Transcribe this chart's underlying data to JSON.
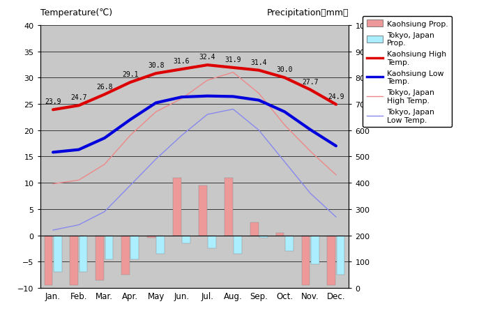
{
  "months": [
    "Jan.",
    "Feb.",
    "Mar.",
    "Apr.",
    "May",
    "Jun.",
    "Jul.",
    "Aug.",
    "Sep.",
    "Oct.",
    "Nov.",
    "Dec."
  ],
  "kaohsiung_high": [
    23.9,
    24.7,
    26.8,
    29.1,
    30.8,
    31.6,
    32.4,
    31.9,
    31.4,
    30.0,
    27.7,
    24.9
  ],
  "kaohsiung_low": [
    15.8,
    16.3,
    18.5,
    22.0,
    25.2,
    26.3,
    26.5,
    26.4,
    25.7,
    23.5,
    20.1,
    17.0
  ],
  "tokyo_high": [
    9.8,
    10.5,
    13.5,
    19.0,
    23.5,
    26.0,
    29.5,
    31.0,
    27.0,
    21.0,
    16.0,
    11.5
  ],
  "tokyo_low": [
    1.0,
    2.0,
    4.5,
    9.5,
    14.5,
    19.0,
    23.0,
    24.0,
    20.0,
    14.0,
    8.0,
    3.5
  ],
  "kaohsiung_precip_bar": [
    -9.5,
    -9.5,
    -8.5,
    -7.5,
    -0.5,
    11.0,
    9.5,
    11.0,
    2.5,
    0.5,
    -9.5,
    -9.5
  ],
  "tokyo_precip_bar": [
    -7.0,
    -7.0,
    -4.5,
    -4.5,
    -3.5,
    -1.5,
    -2.5,
    -3.5,
    -0.5,
    -3.0,
    -5.5,
    -7.5
  ],
  "title_left": "Temperature(℃)",
  "title_right": "Precipitation（mm）",
  "ylim_left": [
    -10,
    40
  ],
  "ylim_right": [
    0,
    1000
  ],
  "bg_color": "#c8c8c8",
  "kaohsiung_high_color": "#dd0000",
  "kaohsiung_low_color": "#0000dd",
  "tokyo_high_color": "#ee8888",
  "tokyo_low_color": "#8888ee",
  "kaohsiung_precip_color": "#ee9999",
  "tokyo_precip_color": "#aaeeff",
  "label_kh": "Kaohsiung Prop.",
  "label_tp": "Tokyo, Japan\nProp.",
  "label_kht": "Kaohsiung High\nTemp.",
  "label_klt": "Kaohsiung Low\nTemp.",
  "label_tht": "Tokyo, Japan\nHigh Temp.",
  "label_tlt": "Tokyo, Japan\nLow Temp."
}
